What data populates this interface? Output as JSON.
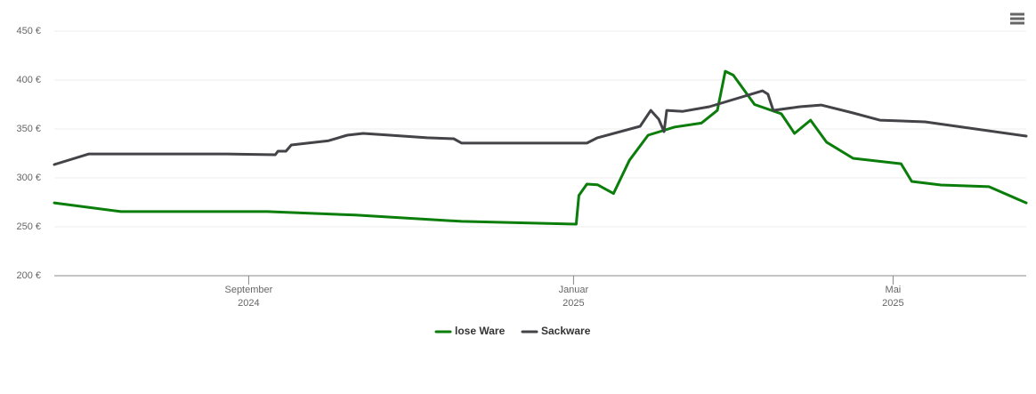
{
  "chart_data": {
    "type": "line",
    "xlim": [
      "2024-06-20",
      "2025-06-20"
    ],
    "xticks": [
      {
        "value": "2024-09-01",
        "label": [
          "September",
          "2024"
        ]
      },
      {
        "value": "2025-01-01",
        "label": [
          "Januar",
          "2025"
        ]
      },
      {
        "value": "2025-05-01",
        "label": [
          "Mai",
          "2025"
        ]
      }
    ],
    "ylim": [
      200,
      450
    ],
    "yticks": [
      {
        "value": 200,
        "label": "200 €"
      },
      {
        "value": 250,
        "label": "250 €"
      },
      {
        "value": 300,
        "label": "300 €"
      },
      {
        "value": 350,
        "label": "350 €"
      },
      {
        "value": 400,
        "label": "400 €"
      },
      {
        "value": 450,
        "label": "450 €"
      }
    ],
    "grid": true,
    "legend": "bottom",
    "series": [
      {
        "name": "lose Ware",
        "color": "#0a7d0a",
        "x": [
          "2024-06-20",
          "2024-07-15",
          "2024-09-08",
          "2024-10-11",
          "2024-11-20",
          "2025-01-02",
          "2025-01-03",
          "2025-01-06",
          "2025-01-10",
          "2025-01-16",
          "2025-01-22",
          "2025-01-29",
          "2025-02-08",
          "2025-02-18",
          "2025-02-24",
          "2025-02-27",
          "2025-03-02",
          "2025-03-10",
          "2025-03-20",
          "2025-03-25",
          "2025-03-31",
          "2025-04-06",
          "2025-04-16",
          "2025-05-04",
          "2025-05-08",
          "2025-05-19",
          "2025-06-06",
          "2025-06-20"
        ],
        "values": [
          274.5,
          265.5,
          265.5,
          262,
          255.5,
          252.7,
          282,
          293.6,
          293,
          284,
          318,
          343.6,
          352,
          356,
          369,
          409,
          405,
          375,
          365.5,
          345.5,
          359,
          336.5,
          320,
          314.5,
          296.4,
          292.7,
          291,
          274.5
        ]
      },
      {
        "name": "Sackware",
        "color": "#434348",
        "x": [
          "2024-06-20",
          "2024-07-03",
          "2024-08-22",
          "2024-09-11",
          "2024-09-12",
          "2024-09-15",
          "2024-09-17",
          "2024-10-01",
          "2024-10-08",
          "2024-10-14",
          "2024-10-24",
          "2024-11-07",
          "2024-11-17",
          "2024-11-20",
          "2025-01-06",
          "2025-01-10",
          "2025-01-26",
          "2025-01-30",
          "2025-02-02",
          "2025-02-04",
          "2025-02-05",
          "2025-02-11",
          "2025-02-21",
          "2025-03-13",
          "2025-03-15",
          "2025-03-17",
          "2025-03-27",
          "2025-04-04",
          "2025-04-16",
          "2025-04-26",
          "2025-05-13",
          "2025-06-20"
        ],
        "values": [
          313.6,
          324.5,
          324.5,
          323.6,
          327.3,
          327.3,
          333.6,
          338,
          343.6,
          345.5,
          343.6,
          341,
          340,
          335.5,
          335.5,
          341,
          352.7,
          369,
          360,
          347.3,
          369,
          368,
          372.7,
          389,
          385.5,
          369,
          372.7,
          374.5,
          366.4,
          359,
          357.3,
          342.7
        ]
      }
    ]
  }
}
